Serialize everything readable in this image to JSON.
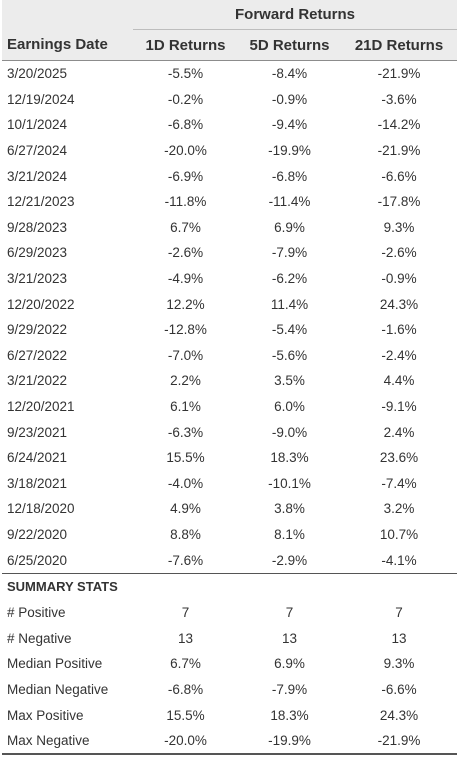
{
  "table": {
    "group_header": "Forward Returns",
    "columns": [
      "Earnings Date",
      "1D Returns",
      "5D Returns",
      "21D Returns"
    ],
    "rows": [
      [
        "3/20/2025",
        "-5.5%",
        "-8.4%",
        "-21.9%"
      ],
      [
        "12/19/2024",
        "-0.2%",
        "-0.9%",
        "-3.6%"
      ],
      [
        "10/1/2024",
        "-6.8%",
        "-9.4%",
        "-14.2%"
      ],
      [
        "6/27/2024",
        "-20.0%",
        "-19.9%",
        "-21.9%"
      ],
      [
        "3/21/2024",
        "-6.9%",
        "-6.8%",
        "-6.6%"
      ],
      [
        "12/21/2023",
        "-11.8%",
        "-11.4%",
        "-17.8%"
      ],
      [
        "9/28/2023",
        "6.7%",
        "6.9%",
        "9.3%"
      ],
      [
        "6/29/2023",
        "-2.6%",
        "-7.9%",
        "-2.6%"
      ],
      [
        "3/21/2023",
        "-4.9%",
        "-6.2%",
        "-0.9%"
      ],
      [
        "12/20/2022",
        "12.2%",
        "11.4%",
        "24.3%"
      ],
      [
        "9/29/2022",
        "-12.8%",
        "-5.4%",
        "-1.6%"
      ],
      [
        "6/27/2022",
        "-7.0%",
        "-5.6%",
        "-2.4%"
      ],
      [
        "3/21/2022",
        "2.2%",
        "3.5%",
        "4.4%"
      ],
      [
        "12/20/2021",
        "6.1%",
        "6.0%",
        "-9.1%"
      ],
      [
        "9/23/2021",
        "-6.3%",
        "-9.0%",
        "2.4%"
      ],
      [
        "6/24/2021",
        "15.5%",
        "18.3%",
        "23.6%"
      ],
      [
        "3/18/2021",
        "-4.0%",
        "-10.1%",
        "-7.4%"
      ],
      [
        "12/18/2020",
        "4.9%",
        "3.8%",
        "3.2%"
      ],
      [
        "9/22/2020",
        "8.8%",
        "8.1%",
        "10.7%"
      ],
      [
        "6/25/2020",
        "-7.6%",
        "-2.9%",
        "-4.1%"
      ]
    ]
  },
  "summary": {
    "title": "SUMMARY STATS",
    "rows": [
      [
        "# Positive",
        "7",
        "7",
        "7"
      ],
      [
        "# Negative",
        "13",
        "13",
        "13"
      ],
      [
        "Median Positive",
        "6.7%",
        "6.9%",
        "9.3%"
      ],
      [
        "Median Negative",
        "-6.8%",
        "-7.9%",
        "-6.6%"
      ],
      [
        "Max Positive",
        "15.5%",
        "18.3%",
        "24.3%"
      ],
      [
        "Max Negative",
        "-20.0%",
        "-19.9%",
        "-21.9%"
      ]
    ]
  }
}
